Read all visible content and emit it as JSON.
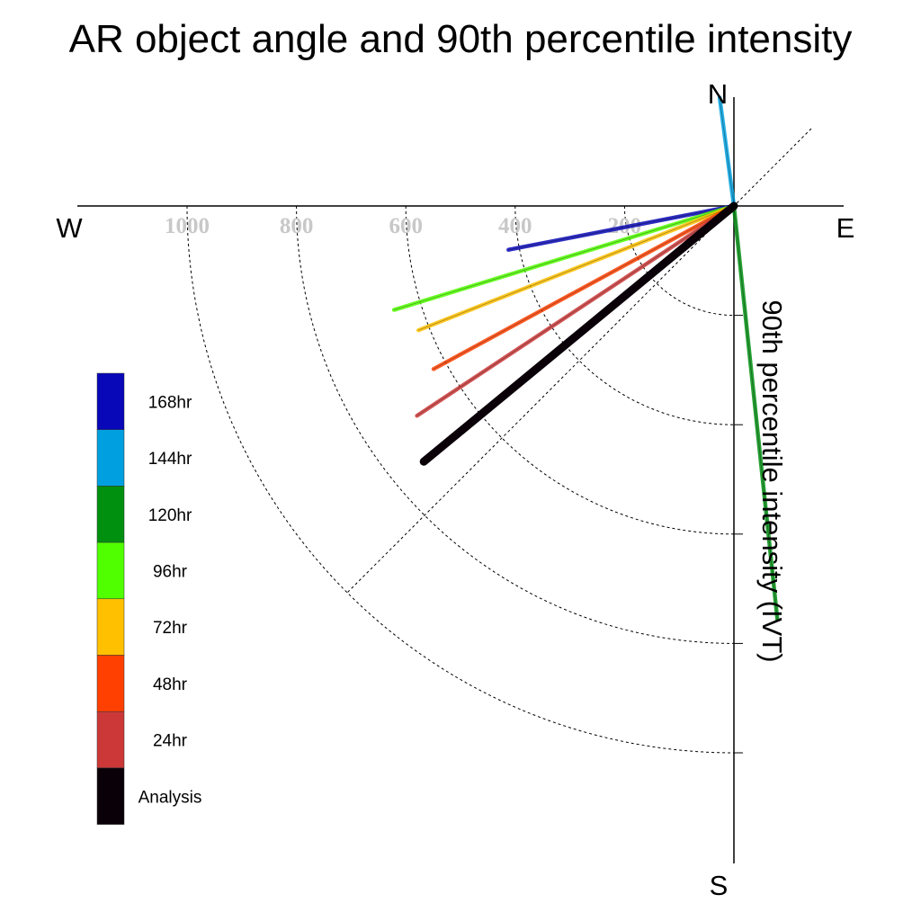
{
  "chart_data": {
    "type": "polar-vector",
    "title": "AR object angle and 90th percentile intensity",
    "ylabel": "90th percentile intensity (IVT)",
    "directions": {
      "north": "N",
      "south": "S",
      "west": "W",
      "east": "E"
    },
    "radial_range": [
      0,
      1000
    ],
    "ring_values": [
      200,
      400,
      600,
      800,
      1000
    ],
    "ring_labels": [
      "200",
      "400",
      "600",
      "800",
      "1000"
    ],
    "legend_position": "left",
    "series": [
      {
        "name": "168hr",
        "color": "#0808b8",
        "angle_deg": 259.0,
        "intensity": 420
      },
      {
        "name": "144hr",
        "color": "#00a0e0",
        "angle_deg": 352.5,
        "intensity": 200
      },
      {
        "name": "120hr",
        "color": "#009010",
        "angle_deg": 174.0,
        "intensity": 760
      },
      {
        "name": "96hr",
        "color": "#50ff00",
        "angle_deg": 253.0,
        "intensity": 650
      },
      {
        "name": "72hr",
        "color": "#ffc000",
        "angle_deg": 248.5,
        "intensity": 620
      },
      {
        "name": "48hr",
        "color": "#ff4000",
        "angle_deg": 241.5,
        "intensity": 625
      },
      {
        "name": "24hr",
        "color": "#cc3838",
        "angle_deg": 236.5,
        "intensity": 695
      },
      {
        "name": "Analysis",
        "color": "#0a0008",
        "angle_deg": 230.5,
        "intensity": 735
      }
    ]
  }
}
